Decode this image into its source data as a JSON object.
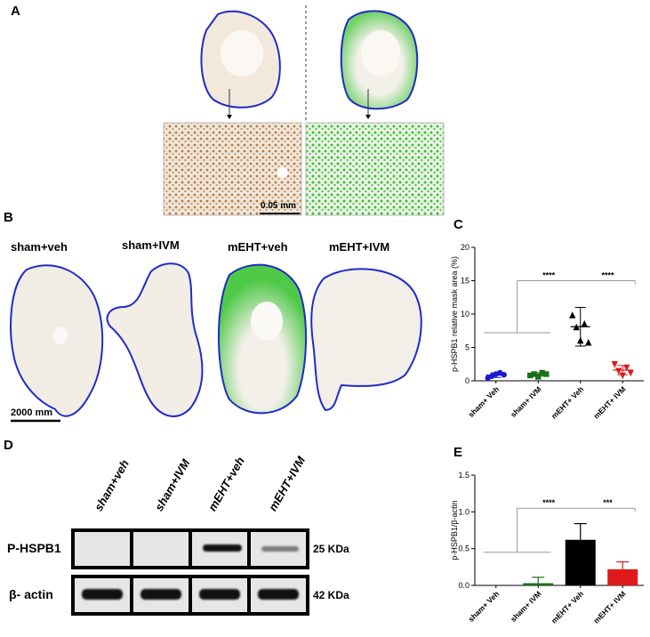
{
  "panels": {
    "A": "A",
    "B": "B",
    "C": "C",
    "D": "D",
    "E": "E"
  },
  "panel_a": {
    "scale_label": "0.05 mm"
  },
  "panel_b": {
    "groups": [
      "sham+veh",
      "sham+IVM",
      "mEHT+veh",
      "mEHT+IVM"
    ],
    "scale_label": "2000 mm"
  },
  "panel_d": {
    "lanes": [
      "sham+veh",
      "sham+IVM",
      "mEHT+veh",
      "mEHT+IVM"
    ],
    "rows": [
      {
        "label": "P-HSPB1",
        "kda": "25 KDa"
      },
      {
        "label": "β- actin",
        "kda": "42 KDa"
      }
    ]
  },
  "chart_data": [
    {
      "id": "C",
      "type": "scatter",
      "ylabel": "p-HSPB1 relative mask area (%)",
      "ylim": [
        0,
        20
      ],
      "yticks": [
        "0",
        "5",
        "10",
        "15",
        "20"
      ],
      "categories": [
        "sham+ Veh",
        "sham+ IVM",
        "mEHT+ Veh",
        "mEHT+ IVM"
      ],
      "colors": [
        "#1a1acc",
        "#1a6e1a",
        "#000000",
        "#e01a1a"
      ],
      "markers": [
        "circle",
        "square",
        "triangle",
        "triangle-down"
      ],
      "points": [
        [
          0.4,
          0.7,
          1.0,
          1.2,
          0.9
        ],
        [
          0.8,
          1.0,
          0.6,
          1.2,
          1.0
        ],
        [
          9.8,
          8.0,
          6.0,
          8.5,
          5.7
        ],
        [
          2.5,
          1.5,
          0.8,
          2.0,
          1.2
        ]
      ],
      "means": [
        0.85,
        0.95,
        8.1,
        1.6
      ],
      "sd": [
        0.35,
        0.25,
        2.9,
        0.7
      ],
      "significance": [
        {
          "label": "****",
          "from": "sham groups",
          "to": "mEHT+ Veh"
        },
        {
          "label": "****",
          "from": "mEHT+ Veh",
          "to": "mEHT+ IVM"
        }
      ]
    },
    {
      "id": "E",
      "type": "bar",
      "ylabel": "p-HSPB1/β-actin",
      "ylim": [
        0,
        1.5
      ],
      "yticks": [
        "0.0",
        "0.5",
        "1.0",
        "1.5"
      ],
      "categories": [
        "sham+ Veh",
        "sham+ IVM",
        "mEHT+ Veh",
        "mEHT+ IVM"
      ],
      "colors": [
        "#1a1acc",
        "#1a6e1a",
        "#000000",
        "#e01a1a"
      ],
      "values": [
        0.0,
        0.03,
        0.62,
        0.22
      ],
      "errors": [
        0.0,
        0.08,
        0.22,
        0.1
      ],
      "significance": [
        {
          "label": "****",
          "from": "sham groups",
          "to": "mEHT+ Veh"
        },
        {
          "label": "***",
          "from": "mEHT+ Veh",
          "to": "mEHT+ IVM"
        }
      ]
    }
  ]
}
